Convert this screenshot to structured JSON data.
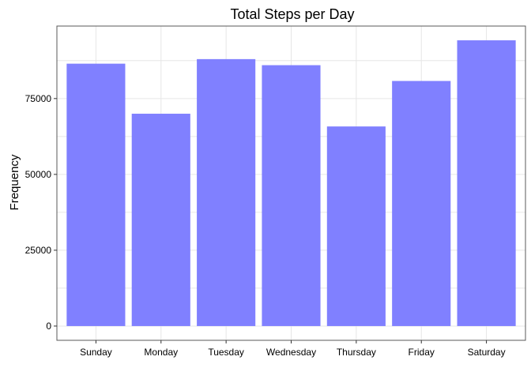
{
  "chart_data": {
    "type": "bar",
    "title": "Total Steps per Day",
    "xlabel": "",
    "ylabel": "Frequency",
    "categories": [
      "Sunday",
      "Monday",
      "Tuesday",
      "Wednesday",
      "Thursday",
      "Friday",
      "Saturday"
    ],
    "values": [
      86500,
      70000,
      88000,
      86000,
      65800,
      80800,
      94200
    ],
    "ylim": [
      -4700,
      98900
    ],
    "yticks": [
      0,
      25000,
      50000,
      75000
    ],
    "ytick_labels": [
      "0",
      "25000",
      "50000",
      "75000"
    ],
    "grid": true,
    "bar_color": "#8080ff"
  }
}
